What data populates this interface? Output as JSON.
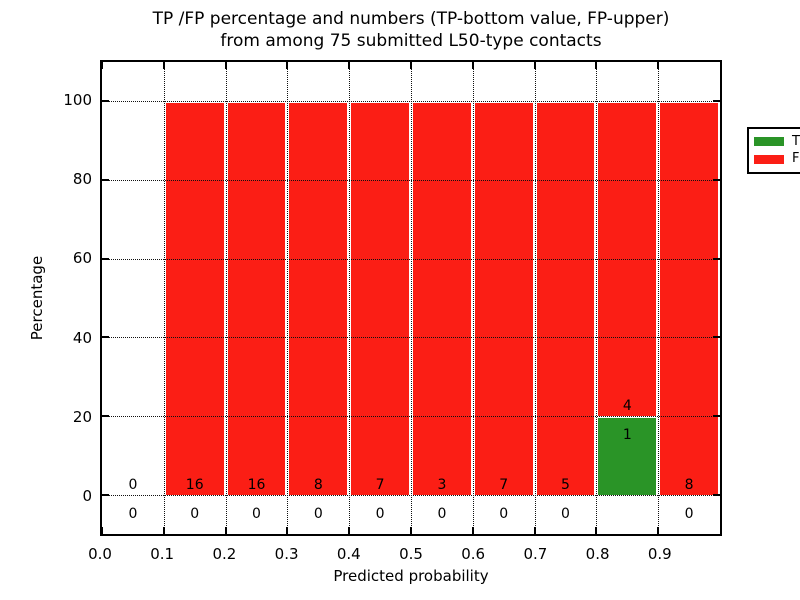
{
  "title": {
    "line1": "TP /FP percentage and numbers (TP-bottom value, FP-upper)",
    "line2": "from among 75 submitted L50-type contacts"
  },
  "chart_data": {
    "type": "bar",
    "subtype": "stacked-percentage-histogram",
    "title": "TP /FP percentage and numbers (TP-bottom value, FP-upper) from among 75 submitted L50-type contacts",
    "xlabel": "Predicted probability",
    "ylabel": "Percentage",
    "xlim": [
      0.0,
      1.0
    ],
    "ylim": [
      -10,
      110
    ],
    "grid": true,
    "legend_position": "upper right",
    "xtick_values": [
      0.0,
      0.1,
      0.2,
      0.3,
      0.4,
      0.5,
      0.6,
      0.7,
      0.8,
      0.9
    ],
    "xtick_labels": [
      "0.0",
      "0.1",
      "0.2",
      "0.3",
      "0.4",
      "0.5",
      "0.6",
      "0.7",
      "0.8",
      "0.9"
    ],
    "ytick_values": [
      0,
      20,
      40,
      60,
      80,
      100
    ],
    "ytick_labels": [
      "0",
      "20",
      "40",
      "60",
      "80",
      "100"
    ],
    "grid_x_values": [
      0.1,
      0.2,
      0.3,
      0.4,
      0.5,
      0.6,
      0.7,
      0.8,
      0.9
    ],
    "grid_y_values": [
      0,
      20,
      40,
      60,
      80,
      100
    ],
    "bin_width": 0.1,
    "bin_starts": [
      0.0,
      0.1,
      0.2,
      0.3,
      0.4,
      0.5,
      0.6,
      0.7,
      0.8,
      0.9
    ],
    "series": [
      {
        "name": "TP",
        "counts": [
          0,
          0,
          0,
          0,
          0,
          0,
          0,
          0,
          1,
          0
        ],
        "color": "#2a9427"
      },
      {
        "name": "FP",
        "counts": [
          0,
          16,
          16,
          8,
          7,
          3,
          7,
          5,
          4,
          8
        ],
        "color": "#fb1e15"
      }
    ],
    "percent_tp": [
      0,
      0,
      0,
      0,
      0,
      0,
      0,
      0,
      20,
      0
    ],
    "percent_fp": [
      0,
      100,
      100,
      100,
      100,
      100,
      100,
      100,
      80,
      100
    ],
    "total_contacts": 75
  },
  "legend": {
    "items": [
      {
        "label": "TP",
        "color": "#2a9427"
      },
      {
        "label": "FP",
        "color": "#fb1e15"
      }
    ]
  },
  "colors": {
    "tp": "#2a9427",
    "fp": "#fb1e15",
    "bar_edge": "#ffffff",
    "grid": "#111111",
    "spine": "#000000",
    "background": "#ffffff"
  }
}
